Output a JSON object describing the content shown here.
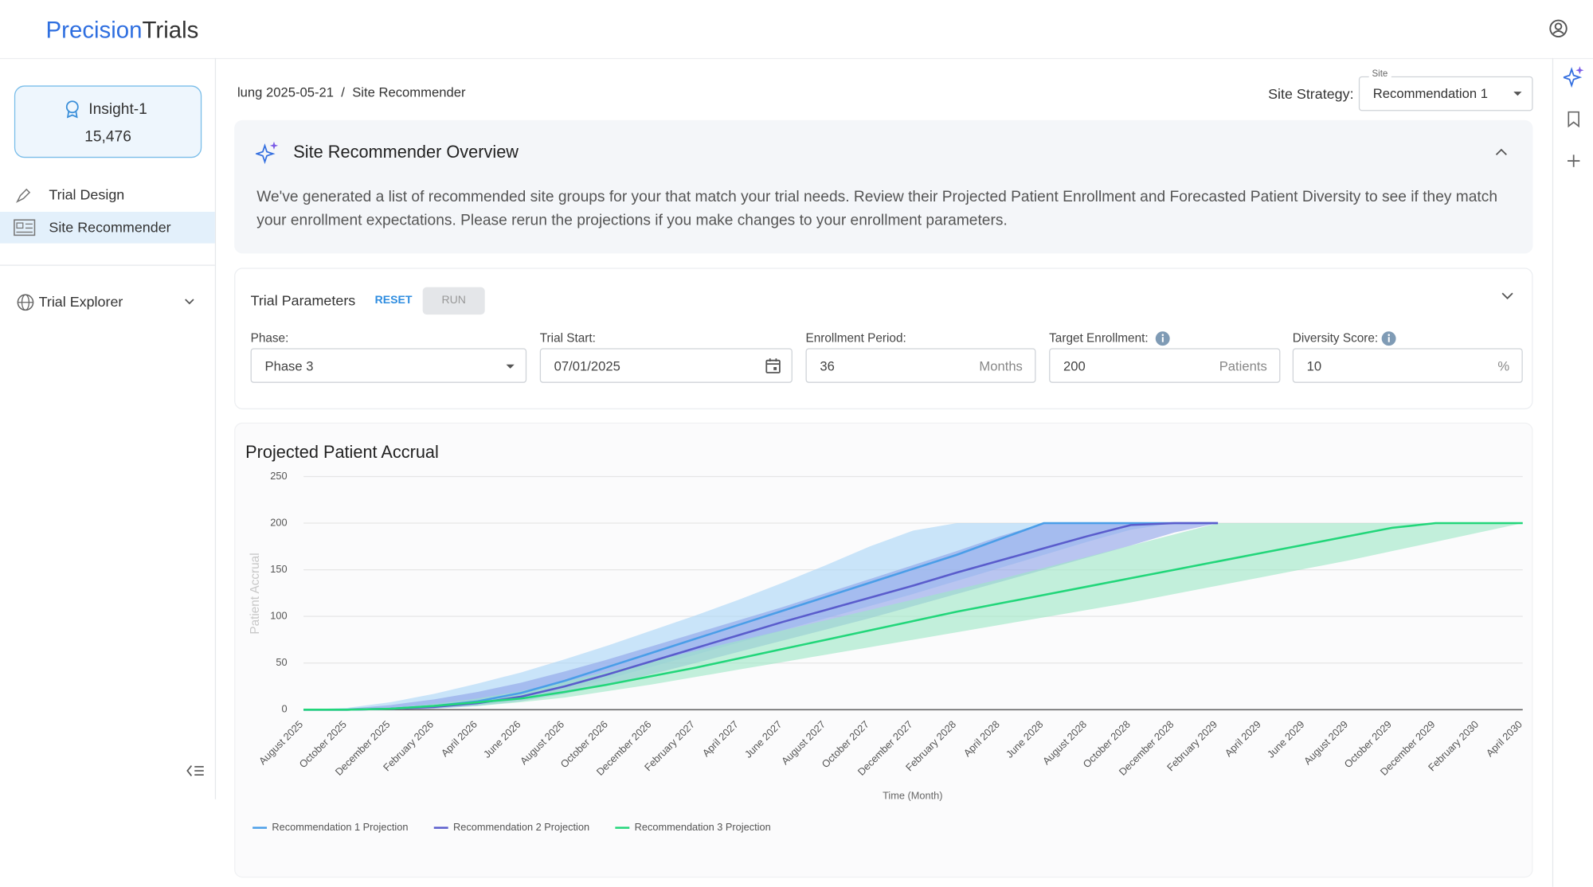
{
  "header": {
    "logo_primary": "Precision",
    "logo_secondary": "Trials"
  },
  "sidebar": {
    "insight": {
      "name": "Insight-1",
      "count": "15,476"
    },
    "nav": [
      "Trial Design",
      "Site Recommender"
    ],
    "explorer": "Trial Explorer"
  },
  "breadcrumb": [
    "lung 2025-05-21",
    "/",
    "Site Recommender"
  ],
  "site_strategy": {
    "label": "Site Strategy:",
    "field_label": "Site",
    "value": "Recommendation 1"
  },
  "overview": {
    "title": "Site Recommender Overview",
    "text": "We've generated a list of recommended site groups for your that match your trial needs. Review their Projected Patient Enrollment and Forecasted Patient Diversity to see if they match your enrollment expectations. Please rerun the projections if you make changes to your enrollment parameters."
  },
  "parameters": {
    "title": "Trial Parameters",
    "reset": "RESET",
    "run": "RUN",
    "fields": [
      {
        "label": "Phase:",
        "value": "Phase 3"
      },
      {
        "label": "Trial Start:",
        "value": "07/01/2025"
      },
      {
        "label": "Enrollment Period:",
        "value": "36",
        "unit": "Months"
      },
      {
        "label": "Target Enrollment:",
        "value": "200",
        "unit": "Patients"
      },
      {
        "label": "Diversity Score:",
        "value": "10",
        "unit": "%"
      }
    ]
  },
  "chart_data": {
    "type": "line",
    "title": "Projected Patient Accrual",
    "x_label": "Time (Month)",
    "y_label": "Patient Accrual",
    "categories": [
      "August 2025",
      "October 2025",
      "December 2025",
      "February 2026",
      "April 2026",
      "June 2026",
      "August 2026",
      "October 2026",
      "December 2026",
      "February 2027",
      "April 2027",
      "June 2027",
      "August 2027",
      "October 2027",
      "December 2027",
      "February 2028",
      "April 2028",
      "June 2028",
      "August 2028",
      "October 2028",
      "December 2028",
      "February 2029",
      "April 2029",
      "June 2029",
      "August 2029",
      "October 2029",
      "December 2029",
      "February 2030",
      "April 2030"
    ],
    "ylim": [
      0,
      250
    ],
    "yticks": [
      0,
      50,
      100,
      150,
      200,
      250
    ],
    "grid": true,
    "legend": "bottom-left",
    "series": [
      {
        "name": "Recommendation 1 Projection",
        "color": "#4a9ee8",
        "band_color": "#a9d6f7",
        "values": [
          0,
          0,
          1,
          4,
          9,
          18,
          31,
          46,
          61,
          76,
          91,
          106,
          121,
          136,
          151,
          166,
          183,
          200,
          200,
          200,
          200,
          200,
          null,
          null,
          null,
          null,
          null,
          null,
          null
        ],
        "upper": [
          0,
          2,
          8,
          17,
          28,
          40,
          54,
          69,
          85,
          101,
          118,
          136,
          155,
          175,
          192,
          200,
          200,
          200,
          200,
          200,
          200,
          200,
          null,
          null,
          null,
          null,
          null,
          null,
          null
        ],
        "lower": [
          0,
          0,
          0,
          2,
          5,
          11,
          21,
          33,
          46,
          59,
          72,
          85,
          98,
          111,
          124,
          138,
          152,
          166,
          180,
          193,
          200,
          200,
          null,
          null,
          null,
          null,
          null,
          null,
          null
        ]
      },
      {
        "name": "Recommendation 2 Projection",
        "color": "#5a5ccc",
        "band_color": "#8ea2e8",
        "values": [
          0,
          0,
          1,
          3,
          7,
          14,
          25,
          38,
          52,
          66,
          80,
          94,
          107,
          120,
          133,
          147,
          160,
          173,
          186,
          198,
          200,
          200,
          null,
          null,
          null,
          null,
          null,
          null,
          null
        ],
        "upper": [
          0,
          1,
          5,
          11,
          19,
          29,
          41,
          54,
          68,
          82,
          96,
          110,
          125,
          140,
          155,
          170,
          186,
          200,
          200,
          200,
          200,
          200,
          null,
          null,
          null,
          null,
          null,
          null,
          null
        ],
        "lower": [
          0,
          0,
          0,
          1,
          4,
          9,
          17,
          27,
          38,
          50,
          62,
          74,
          86,
          98,
          111,
          124,
          137,
          150,
          163,
          176,
          190,
          200,
          null,
          null,
          null,
          null,
          null,
          null,
          null
        ]
      },
      {
        "name": "Recommendation 3 Projection",
        "color": "#22d67a",
        "band_color": "#9de8c4",
        "values": [
          0,
          0,
          1,
          4,
          8,
          12,
          19,
          27,
          36,
          45,
          55,
          65,
          75,
          85,
          95,
          105,
          114,
          123,
          132,
          141,
          150,
          159,
          168,
          177,
          186,
          195,
          200,
          200,
          200
        ],
        "upper": [
          0,
          0,
          2,
          6,
          12,
          20,
          30,
          41,
          52,
          63,
          74,
          85,
          96,
          107,
          118,
          129,
          140,
          152,
          164,
          176,
          188,
          200,
          200,
          200,
          200,
          200,
          200,
          200,
          200
        ],
        "lower": [
          0,
          0,
          0,
          2,
          4,
          8,
          13,
          20,
          27,
          35,
          43,
          51,
          59,
          67,
          75,
          83,
          91,
          99,
          107,
          115,
          124,
          133,
          142,
          151,
          160,
          170,
          180,
          190,
          200
        ]
      }
    ]
  }
}
